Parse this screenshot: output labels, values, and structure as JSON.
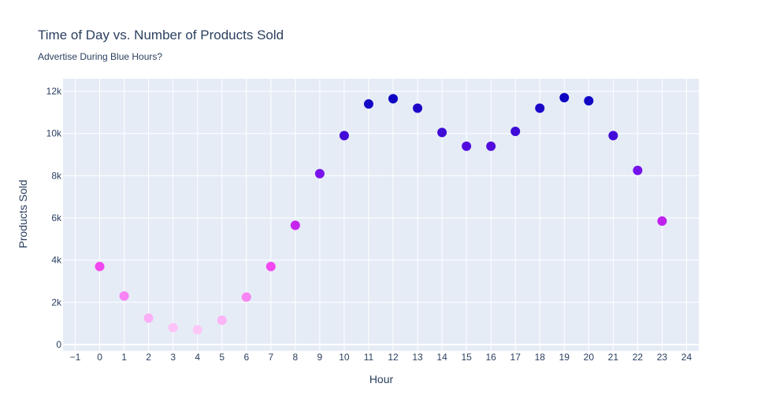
{
  "chart_data": {
    "type": "scatter",
    "title": "Time of Day vs. Number of Products Sold",
    "subtitle": "Advertise During Blue Hours?",
    "xlabel": "Hour",
    "ylabel": "Products Sold",
    "xlim": [
      -1.5,
      24.5
    ],
    "ylim": [
      -300,
      12600
    ],
    "x_ticks": [
      -1,
      0,
      1,
      2,
      3,
      4,
      5,
      6,
      7,
      8,
      9,
      10,
      11,
      12,
      13,
      14,
      15,
      16,
      17,
      18,
      19,
      20,
      21,
      22,
      23,
      24
    ],
    "x_tick_labels": [
      "−1",
      "0",
      "1",
      "2",
      "3",
      "4",
      "5",
      "6",
      "7",
      "8",
      "9",
      "10",
      "11",
      "12",
      "13",
      "14",
      "15",
      "16",
      "17",
      "18",
      "19",
      "20",
      "21",
      "22",
      "23",
      "24"
    ],
    "y_ticks": [
      0,
      2000,
      4000,
      6000,
      8000,
      10000,
      12000
    ],
    "y_tick_labels": [
      "0",
      "2k",
      "4k",
      "6k",
      "8k",
      "10k",
      "12k"
    ],
    "grid": true,
    "x": [
      0,
      1,
      2,
      3,
      4,
      5,
      6,
      7,
      8,
      9,
      10,
      11,
      12,
      13,
      14,
      15,
      16,
      17,
      18,
      19,
      20,
      21,
      22,
      23
    ],
    "y": [
      3700,
      2300,
      1250,
      800,
      700,
      1150,
      2250,
      3700,
      5650,
      8100,
      9900,
      11400,
      11650,
      11200,
      10050,
      9400,
      9400,
      10100,
      11200,
      11700,
      11550,
      9900,
      8250,
      5850
    ],
    "colors": {
      "background": "#e5ecf6",
      "grid": "#ffffff",
      "text": "#2a3f5f",
      "scale": [
        "#fdc7f7",
        "#ef2cf0",
        "#7b12ee",
        "#0d05c2"
      ]
    }
  }
}
